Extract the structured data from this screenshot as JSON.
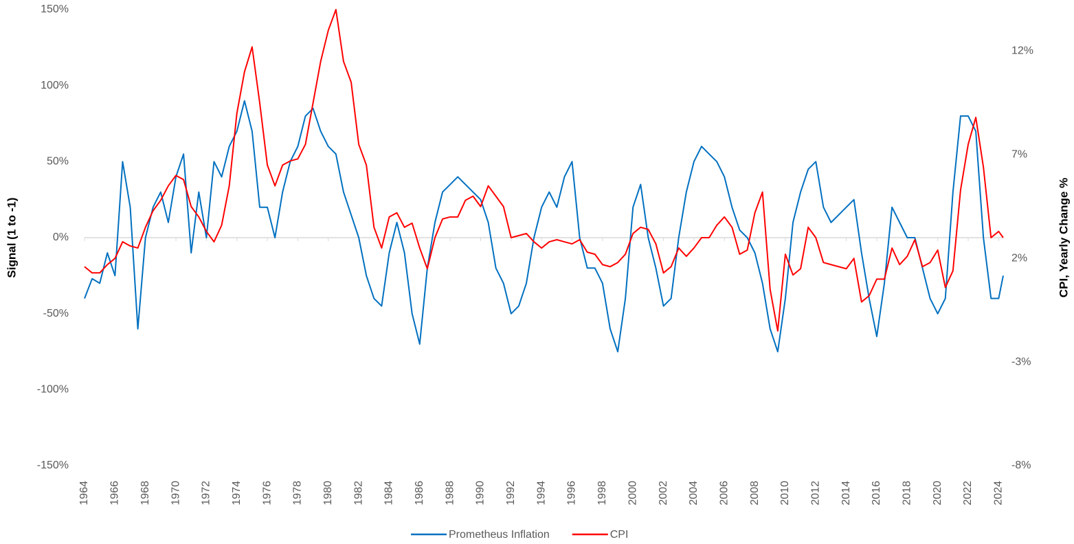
{
  "chart_data": {
    "type": "line",
    "y_label": "Signal  (1 to -1)",
    "y2_label": "CPI, Yearly Change %",
    "x": [
      1964,
      1964.5,
      1965,
      1965.5,
      1966,
      1966.5,
      1967,
      1967.5,
      1968,
      1968.5,
      1969,
      1969.5,
      1970,
      1970.5,
      1971,
      1971.5,
      1972,
      1972.5,
      1973,
      1973.5,
      1974,
      1974.5,
      1975,
      1975.5,
      1976,
      1976.5,
      1977,
      1977.5,
      1978,
      1978.5,
      1979,
      1979.5,
      1980,
      1980.5,
      1981,
      1981.5,
      1982,
      1982.5,
      1983,
      1983.5,
      1984,
      1984.5,
      1985,
      1985.5,
      1986,
      1986.5,
      1987,
      1987.5,
      1988,
      1988.5,
      1989,
      1989.5,
      1990,
      1990.5,
      1991,
      1991.5,
      1992,
      1992.5,
      1993,
      1993.5,
      1994,
      1994.5,
      1995,
      1995.5,
      1996,
      1996.5,
      1997,
      1997.5,
      1998,
      1998.5,
      1999,
      1999.5,
      2000,
      2000.5,
      2001,
      2001.5,
      2002,
      2002.5,
      2003,
      2003.5,
      2004,
      2004.5,
      2005,
      2005.5,
      2006,
      2006.5,
      2007,
      2007.5,
      2008,
      2008.5,
      2009,
      2009.5,
      2010,
      2010.5,
      2011,
      2011.5,
      2012,
      2012.5,
      2013,
      2013.5,
      2014,
      2014.5,
      2015,
      2015.5,
      2016,
      2016.5,
      2017,
      2017.5,
      2018,
      2018.5,
      2019,
      2019.5,
      2020,
      2020.5,
      2021,
      2021.5,
      2022,
      2022.5,
      2023,
      2023.5,
      2024,
      2024.3
    ],
    "series": [
      {
        "name": "Prometheus Inflation",
        "color": "#0070c0",
        "values": [
          -40,
          -27,
          -30,
          -10,
          -25,
          50,
          20,
          -60,
          0,
          20,
          30,
          10,
          40,
          55,
          -10,
          30,
          0,
          50,
          40,
          60,
          70,
          90,
          70,
          20,
          20,
          0,
          30,
          50,
          60,
          80,
          85,
          70,
          60,
          55,
          30,
          15,
          0,
          -25,
          -40,
          -45,
          -10,
          10,
          -10,
          -50,
          -70,
          -20,
          10,
          30,
          35,
          40,
          35,
          30,
          25,
          10,
          -20,
          -30,
          -50,
          -45,
          -30,
          0,
          20,
          30,
          20,
          40,
          50,
          0,
          -20,
          -20,
          -30,
          -60,
          -75,
          -40,
          20,
          35,
          0,
          -20,
          -45,
          -40,
          0,
          30,
          50,
          60,
          55,
          50,
          40,
          20,
          5,
          0,
          -10,
          -30,
          -60,
          -75,
          -40,
          10,
          30,
          45,
          50,
          20,
          10,
          15,
          20,
          25,
          -10,
          -40,
          -65,
          -30,
          20,
          10,
          0,
          0,
          -20,
          -40,
          -50,
          -40,
          30,
          80,
          80,
          70,
          0,
          -40,
          -40,
          -25
        ]
      },
      {
        "name": "CPI",
        "color": "#ff0000",
        "axis": "y2",
        "values": [
          1.6,
          1.3,
          1.3,
          1.7,
          2.0,
          2.8,
          2.6,
          2.5,
          3.5,
          4.3,
          4.8,
          5.5,
          6.0,
          5.8,
          4.5,
          4.0,
          3.3,
          2.8,
          3.6,
          5.5,
          9.0,
          11.0,
          12.2,
          9.5,
          6.5,
          5.5,
          6.5,
          6.7,
          6.8,
          7.5,
          9.5,
          11.5,
          13.0,
          14.0,
          11.5,
          10.5,
          7.5,
          6.5,
          3.5,
          2.5,
          4.0,
          4.2,
          3.5,
          3.7,
          2.5,
          1.5,
          3.0,
          3.9,
          4.0,
          4.0,
          4.8,
          5.0,
          4.5,
          5.5,
          5.0,
          4.5,
          3.0,
          3.1,
          3.2,
          2.8,
          2.5,
          2.8,
          2.9,
          2.8,
          2.7,
          2.9,
          2.3,
          2.2,
          1.7,
          1.6,
          1.8,
          2.2,
          3.2,
          3.5,
          3.4,
          2.7,
          1.3,
          1.6,
          2.5,
          2.1,
          2.5,
          3.0,
          3.0,
          3.6,
          4.0,
          3.5,
          2.2,
          2.4,
          4.2,
          5.2,
          0.5,
          -1.5,
          2.2,
          1.2,
          1.5,
          3.5,
          3.0,
          1.8,
          1.7,
          1.6,
          1.5,
          2.0,
          -0.1,
          0.2,
          1.0,
          1.0,
          2.5,
          1.7,
          2.1,
          2.9,
          1.6,
          1.8,
          2.4,
          0.6,
          1.4,
          5.3,
          7.5,
          8.8,
          6.4,
          3.0,
          3.3,
          3.0
        ]
      }
    ],
    "xlim": [
      1964,
      2024.3
    ],
    "xticks": [
      1964,
      1966,
      1968,
      1970,
      1972,
      1974,
      1976,
      1978,
      1980,
      1982,
      1984,
      1986,
      1988,
      1990,
      1992,
      1994,
      1996,
      1998,
      2000,
      2002,
      2004,
      2006,
      2008,
      2010,
      2012,
      2014,
      2016,
      2018,
      2020,
      2022,
      2024
    ],
    "ylim": [
      -150,
      150
    ],
    "yticks": [
      {
        "value": -150,
        "label": "-150%"
      },
      {
        "value": -100,
        "label": "-100%"
      },
      {
        "value": -50,
        "label": "-50%"
      },
      {
        "value": 0,
        "label": "0%"
      },
      {
        "value": 50,
        "label": "50%"
      },
      {
        "value": 100,
        "label": "100%"
      },
      {
        "value": 150,
        "label": "150%"
      }
    ],
    "y2lim": [
      -8,
      14
    ],
    "y2ticks": [
      {
        "value": -8,
        "label": "-8%"
      },
      {
        "value": -3,
        "label": "-3%"
      },
      {
        "value": 2,
        "label": "2%"
      },
      {
        "value": 7,
        "label": "7%"
      },
      {
        "value": 12,
        "label": "12%"
      }
    ],
    "legend": "bottom"
  }
}
